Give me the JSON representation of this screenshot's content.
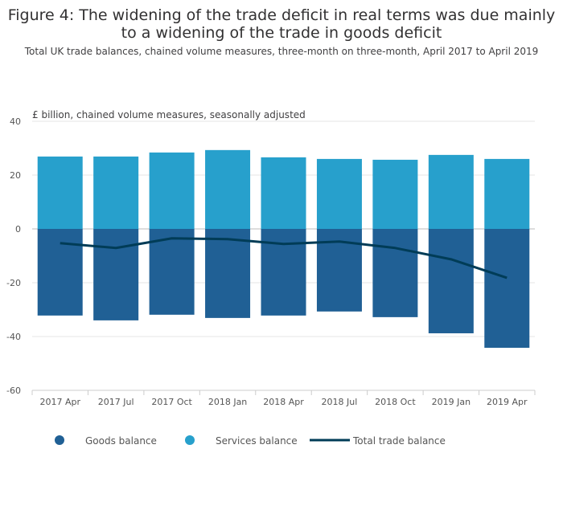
{
  "chart_data": {
    "type": "bar",
    "title": "Figure 4: The widening of the trade deficit in real terms was due mainly to a widening of the trade in goods deficit",
    "subtitle": "Total UK trade balances, chained volume measures, three-month on three-month, April 2017 to April 2019",
    "ylabel": "£ billion, chained volume measures, seasonally adjusted",
    "xlabel": "",
    "ylim": [
      -60,
      40
    ],
    "yticks": [
      40,
      20,
      0,
      -20,
      -40,
      -60
    ],
    "categories": [
      "2017 Apr",
      "2017 Jul",
      "2017 Oct",
      "2018 Jan",
      "2018 Apr",
      "2018 Jul",
      "2018 Oct",
      "2019 Jan",
      "2019 Apr"
    ],
    "series": [
      {
        "name": "Goods balance",
        "kind": "bar",
        "color": "#206095",
        "values": [
          -32.2,
          -34.0,
          -31.9,
          -33.1,
          -32.2,
          -30.7,
          -32.8,
          -38.8,
          -44.2
        ]
      },
      {
        "name": "Services balance",
        "kind": "bar",
        "color": "#27a0cc",
        "values": [
          26.9,
          26.9,
          28.4,
          29.3,
          26.6,
          26.0,
          25.7,
          27.5,
          26.0
        ]
      },
      {
        "name": "Total trade balance",
        "kind": "line",
        "color": "#003c57",
        "values": [
          -5.3,
          -7.1,
          -3.5,
          -3.8,
          -5.6,
          -4.7,
          -7.1,
          -11.3,
          -18.2
        ]
      }
    ],
    "grid": true,
    "legend": "bottom-left"
  }
}
